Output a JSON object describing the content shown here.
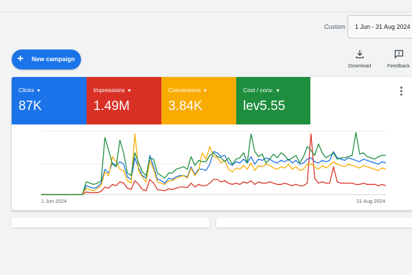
{
  "header": {
    "custom_label": "Custom",
    "date_range": "1 Jun - 31 Aug 2024"
  },
  "toolbar": {
    "new_campaign_label": "New campaign",
    "download_label": "Download",
    "feedback_label": "Feedback"
  },
  "metrics": [
    {
      "label": "Clicks",
      "value": "87K",
      "color": "#1a73e8"
    },
    {
      "label": "Impressions",
      "value": "1.49M",
      "color": "#d93025"
    },
    {
      "label": "Conversions",
      "value": "3.84K",
      "color": "#f9ab00"
    },
    {
      "label": "Cost / conv.",
      "value": "lev5.55",
      "color": "#1e8e3e"
    }
  ],
  "chart_data": {
    "type": "line",
    "x_start_label": "1 Jun 2024",
    "x_end_label": "31 Aug 2024",
    "gridlines": true,
    "series": [
      {
        "color": "#1a73e8",
        "values": [
          0,
          0,
          0,
          0,
          0,
          0,
          0,
          0,
          0,
          0,
          0,
          0,
          14,
          12,
          10,
          12,
          18,
          40,
          34,
          50,
          46,
          52,
          48,
          28,
          24,
          58,
          42,
          30,
          26,
          62,
          44,
          24,
          22,
          18,
          26,
          24,
          28,
          30,
          30,
          28,
          44,
          32,
          40,
          40,
          38,
          48,
          68,
          66,
          60,
          62,
          50,
          46,
          52,
          50,
          56,
          50,
          60,
          48,
          56,
          54,
          58,
          56,
          52,
          50,
          54,
          52,
          56,
          50,
          54,
          48,
          50,
          56,
          58,
          52,
          50,
          54,
          52,
          54,
          68,
          58,
          56,
          54,
          58,
          56,
          54,
          52,
          56,
          54,
          52,
          50,
          48,
          52,
          50
        ]
      },
      {
        "color": "#d93025",
        "values": [
          0,
          0,
          0,
          0,
          0,
          0,
          0,
          0,
          0,
          0,
          0,
          0,
          4,
          3,
          3,
          3,
          5,
          12,
          10,
          16,
          14,
          20,
          18,
          10,
          8,
          22,
          16,
          8,
          6,
          24,
          18,
          8,
          7,
          6,
          9,
          8,
          10,
          12,
          12,
          11,
          18,
          12,
          16,
          14,
          14,
          18,
          24,
          24,
          20,
          22,
          18,
          16,
          18,
          16,
          20,
          18,
          22,
          16,
          20,
          18,
          18,
          20,
          18,
          16,
          16,
          18,
          16,
          14,
          16,
          14,
          14,
          18,
          96,
          26,
          18,
          20,
          18,
          18,
          44,
          20,
          18,
          18,
          18,
          18,
          16,
          16,
          18,
          16,
          16,
          16,
          14,
          16,
          14
        ]
      },
      {
        "color": "#f9ab00",
        "values": [
          0,
          0,
          0,
          0,
          0,
          0,
          0,
          0,
          0,
          0,
          0,
          0,
          10,
          8,
          6,
          10,
          14,
          36,
          30,
          60,
          52,
          40,
          38,
          22,
          18,
          96,
          38,
          28,
          20,
          54,
          40,
          20,
          18,
          16,
          22,
          22,
          26,
          28,
          30,
          26,
          42,
          30,
          38,
          66,
          56,
          76,
          60,
          58,
          50,
          54,
          40,
          36,
          42,
          40,
          46,
          40,
          50,
          38,
          46,
          44,
          48,
          46,
          42,
          40,
          44,
          42,
          48,
          40,
          44,
          38,
          40,
          48,
          48,
          44,
          40,
          46,
          42,
          46,
          52,
          48,
          46,
          44,
          48,
          46,
          44,
          42,
          46,
          44,
          42,
          40,
          38,
          42,
          40
        ]
      },
      {
        "color": "#1e8e3e",
        "values": [
          0,
          0,
          0,
          0,
          0,
          0,
          0,
          0,
          0,
          0,
          0,
          0,
          20,
          18,
          16,
          18,
          22,
          90,
          70,
          48,
          44,
          86,
          66,
          34,
          30,
          66,
          50,
          36,
          30,
          58,
          56,
          34,
          30,
          26,
          34,
          34,
          40,
          42,
          44,
          40,
          60,
          46,
          54,
          52,
          52,
          62,
          66,
          60,
          58,
          52,
          58,
          48,
          56,
          58,
          66,
          50,
          96,
          68,
          60,
          64,
          50,
          56,
          64,
          58,
          66,
          62,
          54,
          58,
          62,
          50,
          60,
          76,
          70,
          62,
          80,
          66,
          58,
          62,
          66,
          56,
          58,
          58,
          60,
          62,
          98,
          64,
          66,
          60,
          58,
          56,
          60,
          62,
          62
        ]
      }
    ],
    "ylim": [
      0,
      100
    ]
  }
}
